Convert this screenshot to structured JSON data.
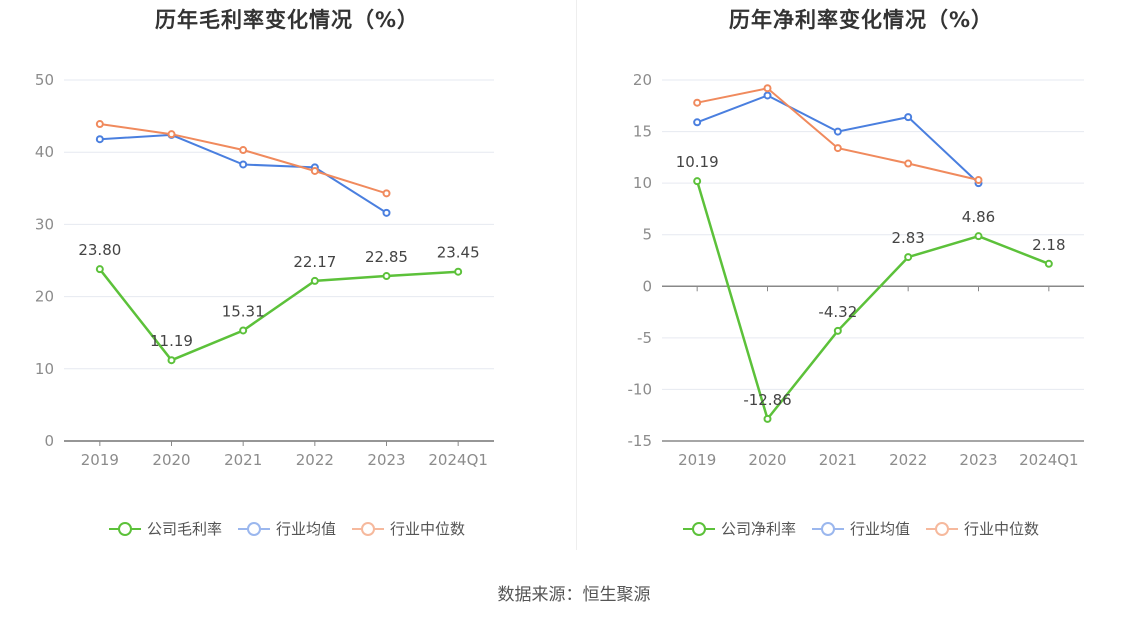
{
  "source": "数据来源：恒生聚源",
  "colors": {
    "company": "#5cc13a",
    "avg": "#4a7fdf",
    "median": "#f08a5d"
  },
  "chart_data": [
    {
      "type": "line",
      "title": "历年毛利率变化情况（%）",
      "categories": [
        "2019",
        "2020",
        "2021",
        "2022",
        "2023",
        "2024Q1"
      ],
      "ylim": [
        0,
        50
      ],
      "yticks": [
        0,
        10,
        20,
        30,
        40,
        50
      ],
      "grid": true,
      "legend_position": "bottom",
      "series": [
        {
          "name": "公司毛利率",
          "key": "company",
          "values": [
            23.8,
            11.19,
            15.31,
            22.17,
            22.85,
            23.45
          ],
          "labels": [
            "23.80",
            "11.19",
            "15.31",
            "22.17",
            "22.85",
            "23.45"
          ]
        },
        {
          "name": "行业均值",
          "key": "avg",
          "values": [
            41.8,
            42.4,
            38.3,
            37.9,
            31.6,
            null
          ]
        },
        {
          "name": "行业中位数",
          "key": "median",
          "values": [
            43.9,
            42.5,
            40.3,
            37.4,
            34.3,
            null
          ]
        }
      ]
    },
    {
      "type": "line",
      "title": "历年净利率变化情况（%）",
      "categories": [
        "2019",
        "2020",
        "2021",
        "2022",
        "2023",
        "2024Q1"
      ],
      "ylim": [
        -15,
        20
      ],
      "yticks": [
        -15,
        -10,
        -5,
        0,
        5,
        10,
        15,
        20
      ],
      "grid": true,
      "legend_position": "bottom",
      "series": [
        {
          "name": "公司净利率",
          "key": "company",
          "values": [
            10.19,
            -12.86,
            -4.32,
            2.83,
            4.86,
            2.18
          ],
          "labels": [
            "10.19",
            "-12.86",
            "-4.32",
            "2.83",
            "4.86",
            "2.18"
          ]
        },
        {
          "name": "行业均值",
          "key": "avg",
          "values": [
            15.9,
            18.5,
            15.0,
            16.4,
            10.0,
            null
          ]
        },
        {
          "name": "行业中位数",
          "key": "median",
          "values": [
            17.8,
            19.2,
            13.4,
            11.9,
            10.3,
            null
          ]
        }
      ]
    }
  ]
}
